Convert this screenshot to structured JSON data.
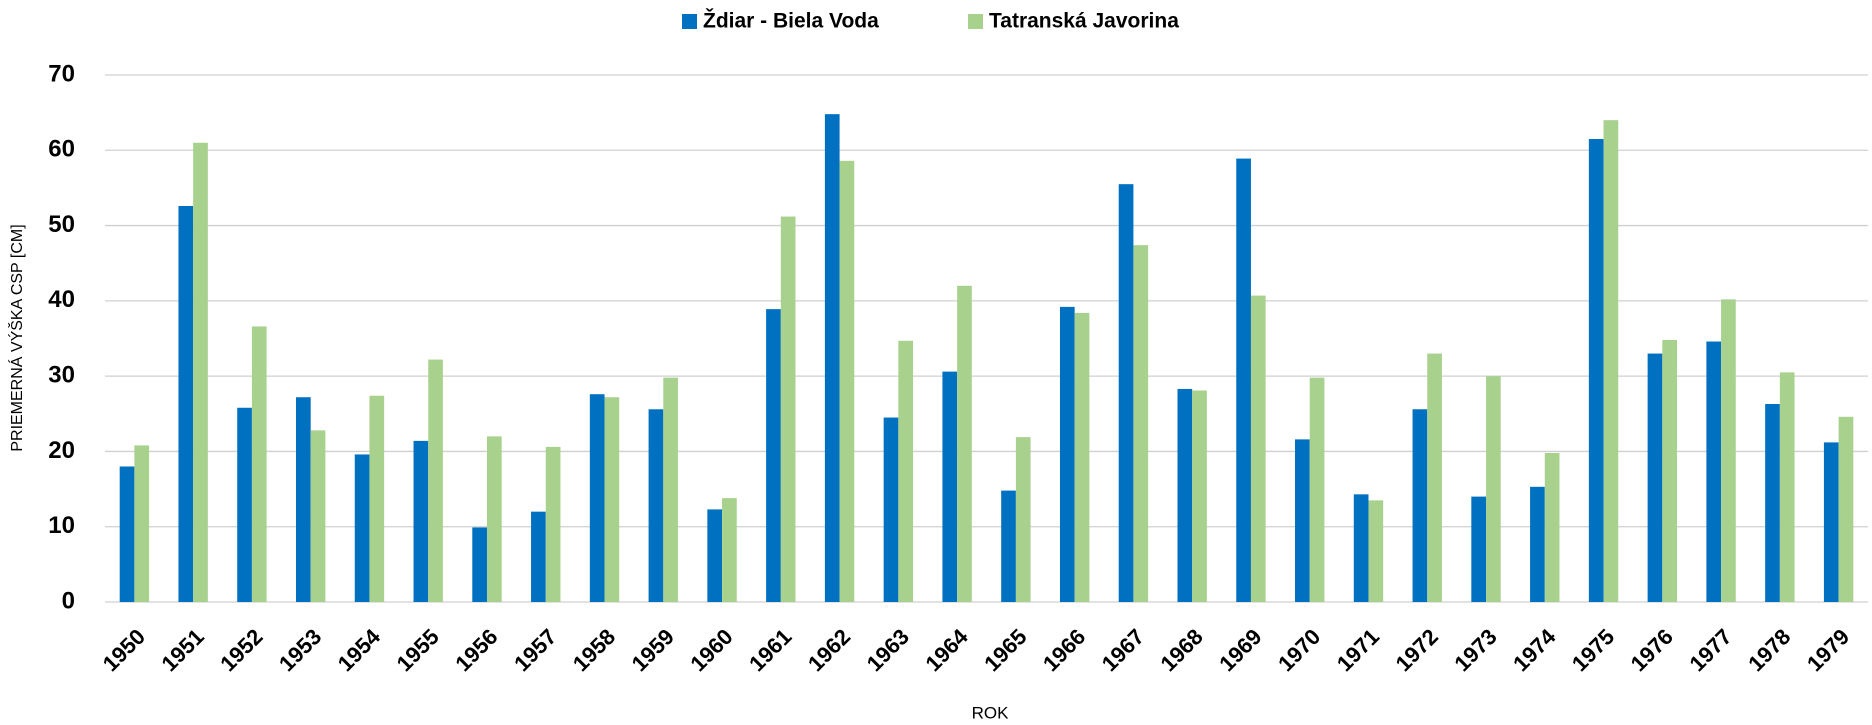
{
  "chart_data": {
    "type": "bar",
    "x_label": "ROK",
    "y_label": "PRIEMERNÁ VÝŠKA CSP [CM]",
    "categories": [
      "1950",
      "1951",
      "1952",
      "1953",
      "1954",
      "1955",
      "1956",
      "1957",
      "1958",
      "1959",
      "1960",
      "1961",
      "1962",
      "1963",
      "1964",
      "1965",
      "1966",
      "1967",
      "1968",
      "1969",
      "1970",
      "1971",
      "1972",
      "1973",
      "1974",
      "1975",
      "1976",
      "1977",
      "1978",
      "1979"
    ],
    "series": [
      {
        "name": "Ždiar - Biela Voda",
        "color": "#0070c0",
        "values": [
          18,
          52.6,
          25.8,
          27.2,
          19.6,
          21.4,
          9.9,
          12,
          27.6,
          25.6,
          12.3,
          38.9,
          64.8,
          24.5,
          30.6,
          14.8,
          39.2,
          55.5,
          28.3,
          58.9,
          21.6,
          14.3,
          25.6,
          14,
          15.3,
          61.5,
          33,
          34.6,
          26.3,
          21.2
        ]
      },
      {
        "name": "Tatranská Javorina",
        "color": "#a9d18e",
        "values": [
          20.8,
          61,
          36.6,
          22.8,
          27.4,
          32.2,
          22,
          20.6,
          27.2,
          29.8,
          13.8,
          51.2,
          58.6,
          34.7,
          42,
          21.9,
          38.4,
          47.4,
          28.1,
          40.7,
          29.8,
          13.5,
          33,
          30,
          19.8,
          64,
          34.8,
          40.2,
          30.5,
          24.6
        ]
      }
    ],
    "ylim": [
      0,
      70
    ],
    "yticks": [
      0,
      10,
      20,
      30,
      40,
      50,
      60,
      70
    ],
    "grid": true,
    "legend": "top"
  }
}
